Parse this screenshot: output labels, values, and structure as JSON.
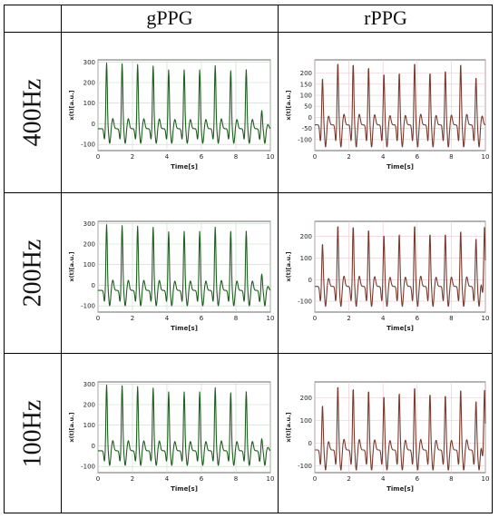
{
  "table": {
    "columns": [
      "gPPG",
      "rPPG"
    ],
    "rows": [
      "400Hz",
      "200Hz",
      "100Hz"
    ]
  },
  "colors": {
    "gPPG": "#1f5f1f",
    "rPPG": "#7a3b2e",
    "grid": "#c8d8c8",
    "rgrid": "#e8c8cf"
  },
  "chart_data": [
    {
      "type": "line",
      "panel": "gPPG 400Hz",
      "xlabel": "Time[s]",
      "ylabel": "x(t)[a.u.]",
      "xlim": [
        0,
        10
      ],
      "ylim": [
        -130,
        310
      ],
      "xticks": [
        "0",
        "2",
        "4",
        "6",
        "8",
        "10"
      ],
      "yticks": [
        "-100",
        "0",
        "100",
        "200",
        "300"
      ],
      "peak_times": [
        0.5,
        1.4,
        2.3,
        3.2,
        4.1,
        5.0,
        5.9,
        6.8,
        7.7,
        8.6,
        9.5
      ],
      "peak_values": [
        295,
        292,
        288,
        281,
        262,
        262,
        262,
        283,
        258,
        263,
        65
      ],
      "trough_value": -95,
      "grid": true
    },
    {
      "type": "line",
      "panel": "rPPG 400Hz",
      "xlabel": "Time[s]",
      "ylabel": "x(t)[a.u.]",
      "xlim": [
        0,
        10
      ],
      "ylim": [
        -150,
        260
      ],
      "xticks": [
        "0",
        "2",
        "4",
        "6",
        "8",
        "10"
      ],
      "yticks": [
        "-100",
        "-50",
        "0",
        "50",
        "100",
        "150",
        "200"
      ],
      "peak_times": [
        0.45,
        1.35,
        2.25,
        3.15,
        4.05,
        4.95,
        5.85,
        6.75,
        7.65,
        8.55,
        9.45
      ],
      "peak_values": [
        180,
        250,
        245,
        230,
        200,
        205,
        250,
        205,
        215,
        245,
        185
      ],
      "trough_value": -135,
      "grid": true
    },
    {
      "type": "line",
      "panel": "gPPG 200Hz",
      "xlabel": "Time[s]",
      "ylabel": "x(t)[a.u.]",
      "xlim": [
        0,
        10
      ],
      "ylim": [
        -130,
        310
      ],
      "xticks": [
        "0",
        "2",
        "4",
        "6",
        "8",
        "10"
      ],
      "yticks": [
        "-100",
        "0",
        "100",
        "200",
        "300"
      ],
      "peak_times": [
        0.5,
        1.4,
        2.3,
        3.2,
        4.1,
        5.0,
        5.9,
        6.8,
        7.7,
        8.6,
        9.5
      ],
      "peak_values": [
        295,
        290,
        288,
        282,
        260,
        262,
        262,
        283,
        262,
        263,
        55
      ],
      "trough_value": -100,
      "grid": true
    },
    {
      "type": "line",
      "panel": "rPPG 200Hz",
      "xlabel": "Time[s]",
      "ylabel": "x(t)[a.u.]",
      "xlim": [
        0,
        10
      ],
      "ylim": [
        -150,
        270
      ],
      "xticks": [
        "0",
        "2",
        "4",
        "6",
        "8",
        "10"
      ],
      "yticks": [
        "-100",
        "0",
        "100",
        "200"
      ],
      "peak_times": [
        0.45,
        1.35,
        2.25,
        3.15,
        4.05,
        4.95,
        5.85,
        6.75,
        7.65,
        8.55,
        9.45,
        9.95
      ],
      "peak_values": [
        170,
        255,
        250,
        235,
        210,
        215,
        255,
        215,
        215,
        230,
        195,
        250
      ],
      "trough_value": -125,
      "grid": true
    },
    {
      "type": "line",
      "panel": "gPPG 100Hz",
      "xlabel": "Time[s]",
      "ylabel": "x(t)[a.u.]",
      "xlim": [
        0,
        10
      ],
      "ylim": [
        -130,
        310
      ],
      "xticks": [
        "0",
        "2",
        "4",
        "6",
        "8",
        "10"
      ],
      "yticks": [
        "-100",
        "0",
        "100",
        "200",
        "300"
      ],
      "peak_times": [
        0.5,
        1.4,
        2.3,
        3.2,
        4.1,
        5.0,
        5.9,
        6.8,
        7.7,
        8.6,
        9.5
      ],
      "peak_values": [
        295,
        292,
        288,
        281,
        262,
        262,
        262,
        283,
        258,
        263,
        35
      ],
      "trough_value": -95,
      "grid": true
    },
    {
      "type": "line",
      "panel": "rPPG 100Hz",
      "xlabel": "Time[s]",
      "ylabel": "x(t)[a.u.]",
      "xlim": [
        0,
        10
      ],
      "ylim": [
        -130,
        270
      ],
      "xticks": [
        "0",
        "2",
        "4",
        "6",
        "8",
        "10"
      ],
      "yticks": [
        "-100",
        "0",
        "100",
        "200"
      ],
      "peak_times": [
        0.45,
        1.35,
        2.25,
        3.15,
        4.05,
        4.95,
        5.85,
        6.75,
        7.65,
        8.55,
        9.45,
        9.95
      ],
      "peak_values": [
        170,
        255,
        245,
        235,
        210,
        225,
        250,
        220,
        215,
        240,
        190,
        240
      ],
      "trough_value": -120,
      "grid": true
    }
  ]
}
